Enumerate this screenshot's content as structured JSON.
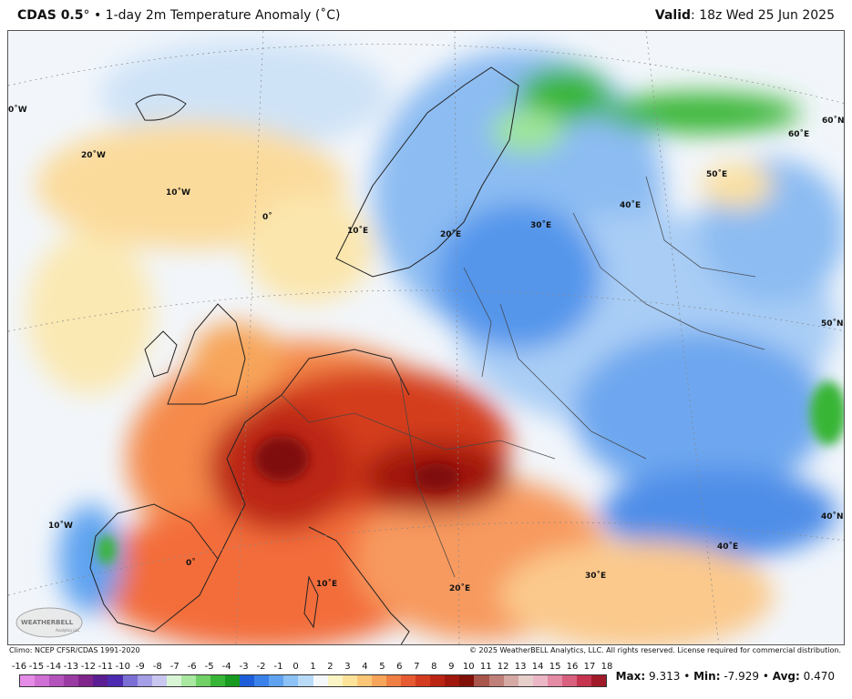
{
  "header": {
    "model": "CDAS 0.5",
    "degree": "°",
    "separator": "•",
    "product": "1-day 2m Temperature Anomaly (˚C)",
    "valid_label": "Valid",
    "valid_value": "18z Wed 25 Jun 2025"
  },
  "map": {
    "grid_labels": [
      "0˚W",
      "20˚W",
      "10˚W",
      "0˚",
      "10˚E",
      "20˚E",
      "30˚E",
      "40˚E",
      "50˚E",
      "60˚E",
      "60˚N",
      "50˚N",
      "40˚N",
      "10˚W",
      "0˚",
      "10˚E",
      "20˚E",
      "30˚E",
      "40˚E"
    ],
    "logo_text": "WEATHERBELL",
    "logo_subtext": "Analytics LLC"
  },
  "credits": {
    "climo": "Climo: NCEP CFSR/CDAS 1991-2020",
    "copyright": "© 2025 WeatherBELL Analytics, LLC. All rights reserved. License required for commercial distribution."
  },
  "scale": {
    "ticks": [
      "-16",
      "-15",
      "-14",
      "-13",
      "-12",
      "-11",
      "-10",
      "-9",
      "-8",
      "-7",
      "-6",
      "-5",
      "-4",
      "-3",
      "-2",
      "-1",
      "0",
      "1",
      "2",
      "3",
      "4",
      "5",
      "6",
      "7",
      "8",
      "9",
      "10",
      "11",
      "12",
      "13",
      "14",
      "15",
      "16",
      "17",
      "18"
    ],
    "colors": [
      "#e58ce6",
      "#d06fd4",
      "#b553bc",
      "#9a3ba3",
      "#80258c",
      "#5c1f93",
      "#4c2bb0",
      "#7b6fd6",
      "#a49fe6",
      "#c9c6f0",
      "#d9f5d6",
      "#a8e8a0",
      "#6fd166",
      "#37b536",
      "#189a20",
      "#1e5fd9",
      "#3a82ea",
      "#5fa3f0",
      "#8cc2f5",
      "#b9dbf8",
      "#f5f8fb",
      "#fbf4c4",
      "#fde39a",
      "#fbc777",
      "#f7a55a",
      "#f07f44",
      "#e65b31",
      "#d43c1f",
      "#bb2514",
      "#a0180d",
      "#801008",
      "#a8554c",
      "#c0807a",
      "#d5aaa5",
      "#e7cfcb",
      "#ebb7c7",
      "#e48ba6",
      "#d9607f",
      "#c63450",
      "#a01a2a"
    ]
  },
  "stats": {
    "max_label": "Max:",
    "max_value": "9.313",
    "min_label": "Min:",
    "min_value": "-7.929",
    "avg_label": "Avg:",
    "avg_value": "0.470"
  }
}
